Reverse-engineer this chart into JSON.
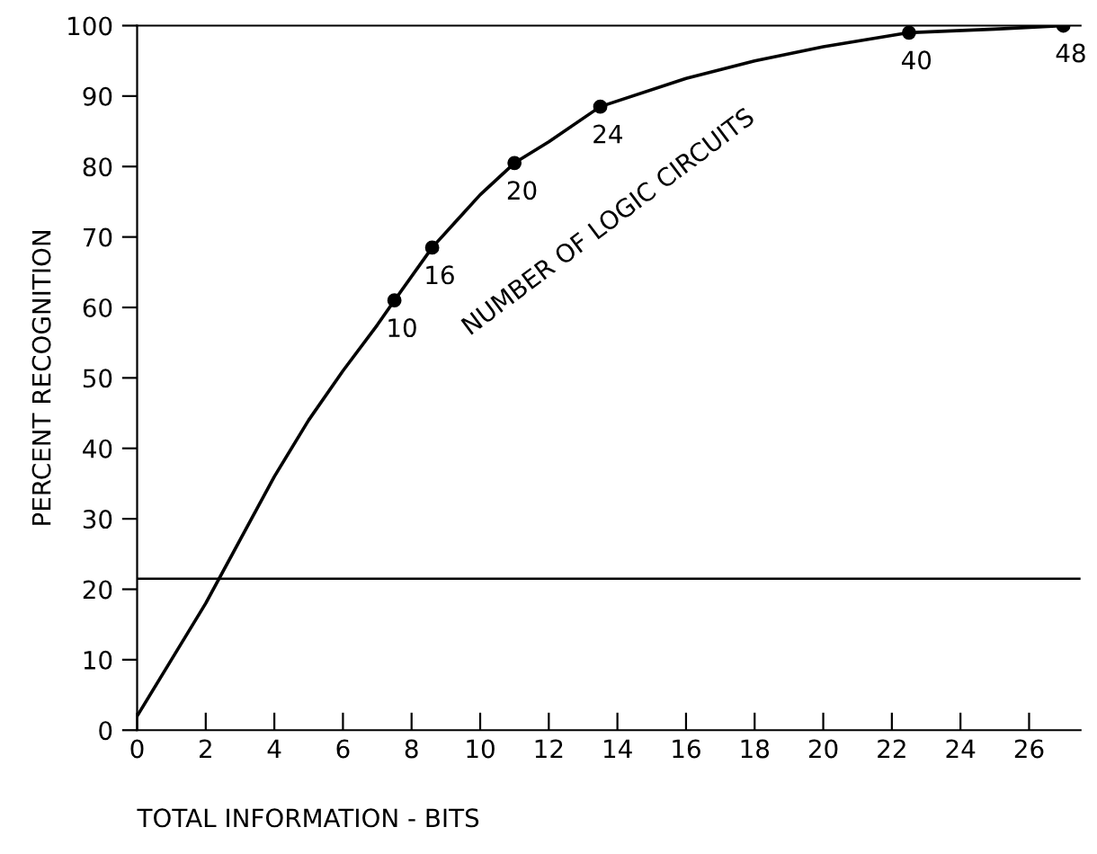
{
  "chart_data": {
    "type": "line",
    "xlabel": "TOTAL INFORMATION - BITS",
    "ylabel": "PERCENT RECOGNITION",
    "series": [
      {
        "color": "#000000",
        "x": [
          0,
          1,
          2,
          3,
          4,
          5,
          6,
          7,
          7.5,
          8.6,
          10,
          11,
          12,
          13.5,
          16,
          18,
          20,
          22.5,
          25,
          27
        ],
        "values": [
          2,
          10,
          18,
          27,
          36,
          44,
          51,
          57.5,
          61,
          68.5,
          76,
          80.5,
          83.5,
          88.5,
          92.5,
          95,
          97,
          99,
          99.5,
          100
        ]
      },
      {
        "type": "scatter",
        "color": "#000000",
        "marker": "circle",
        "x": [
          7.5,
          8.6,
          11,
          13.5,
          22.5,
          27
        ],
        "values": [
          61,
          68.5,
          80.5,
          88.5,
          99,
          100
        ]
      }
    ],
    "annotations": [
      "NUMBER OF LOGIC CIRCUITS",
      {
        "text": "10",
        "x": 7.5,
        "y": 61
      },
      {
        "text": "16",
        "x": 8.6,
        "y": 68.5
      },
      {
        "text": "20",
        "x": 11,
        "y": 80.5
      },
      {
        "text": "24",
        "x": 13.5,
        "y": 88.5
      },
      {
        "text": "40",
        "x": 22.5,
        "y": 99
      },
      {
        "text": "48",
        "x": 27,
        "y": 100
      }
    ],
    "ref_lines": [
      {
        "axis": "y",
        "value": 21.5,
        "color": "#000000"
      }
    ],
    "xlim": [
      0,
      27.5
    ],
    "ylim": [
      0,
      100
    ],
    "xticks": [
      0,
      2,
      4,
      6,
      8,
      10,
      12,
      14,
      16,
      18,
      20,
      22,
      24,
      26
    ],
    "yticks": [
      0,
      10,
      20,
      30,
      40,
      50,
      60,
      70,
      80,
      90,
      100
    ]
  }
}
